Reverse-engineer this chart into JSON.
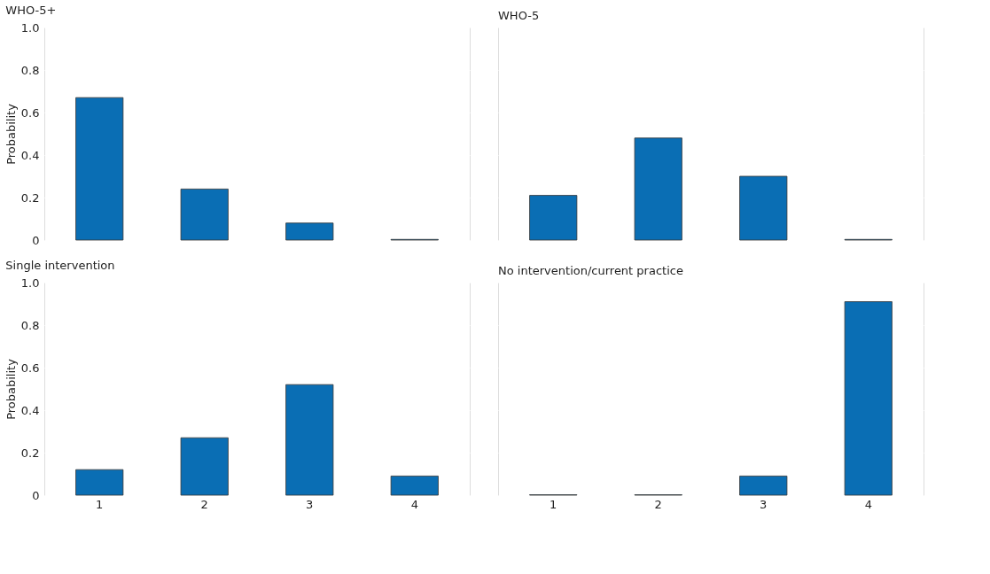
{
  "chart_data": [
    {
      "type": "bar",
      "title": "WHO-5+",
      "ylabel": "Probability",
      "categories": [
        "1",
        "2",
        "3",
        "4"
      ],
      "series": [
        {
          "color": "#0a6eb4",
          "values": [
            0.67,
            0.24,
            0.08,
            0.003
          ]
        }
      ],
      "ylim": [
        0,
        1
      ],
      "yticks": [
        0,
        0.2,
        0.4,
        0.6,
        0.8,
        {
          "value": 1,
          "label": "1.0"
        }
      ],
      "grid": "y",
      "tick_labels": "y"
    },
    {
      "type": "bar",
      "title": "WHO-5",
      "categories": [
        "1",
        "2",
        "3",
        "4"
      ],
      "series": [
        {
          "color": "#0a6eb4",
          "values": [
            0.21,
            0.48,
            0.3,
            0.003
          ]
        }
      ],
      "ylim": [
        0,
        1
      ],
      "yticks": [
        {
          "value": 0,
          "label": null
        },
        {
          "value": 0.2,
          "label": null
        },
        {
          "value": 0.4,
          "label": null
        },
        {
          "value": 0.6,
          "label": null
        },
        {
          "value": 0.8,
          "label": null
        },
        {
          "value": 1,
          "label": null
        }
      ],
      "grid": "y",
      "tick_labels": false
    },
    {
      "type": "bar",
      "title": "Single intervention",
      "ylabel": "Probability",
      "categories": [
        "1",
        "2",
        "3",
        "4"
      ],
      "series": [
        {
          "color": "#0a6eb4",
          "values": [
            0.12,
            0.27,
            0.52,
            0.09
          ]
        }
      ],
      "ylim": [
        0,
        1
      ],
      "yticks": [
        0,
        0.2,
        0.4,
        0.6,
        0.8,
        {
          "value": 1,
          "label": "1.0"
        }
      ],
      "grid": "y"
    },
    {
      "type": "bar",
      "title": "No intervention/current practice",
      "categories": [
        "1",
        "2",
        "3",
        "4"
      ],
      "series": [
        {
          "color": "#0a6eb4",
          "values": [
            0.002,
            0.002,
            0.09,
            0.91
          ]
        }
      ],
      "ylim": [
        0,
        1
      ],
      "yticks": [
        {
          "value": 0,
          "label": null
        },
        {
          "value": 0.2,
          "label": null
        },
        {
          "value": 0.4,
          "label": null
        },
        {
          "value": 0.6,
          "label": null
        },
        {
          "value": 0.8,
          "label": null
        },
        {
          "value": 1,
          "label": null
        }
      ],
      "grid": "y",
      "tick_labels": "x"
    }
  ]
}
